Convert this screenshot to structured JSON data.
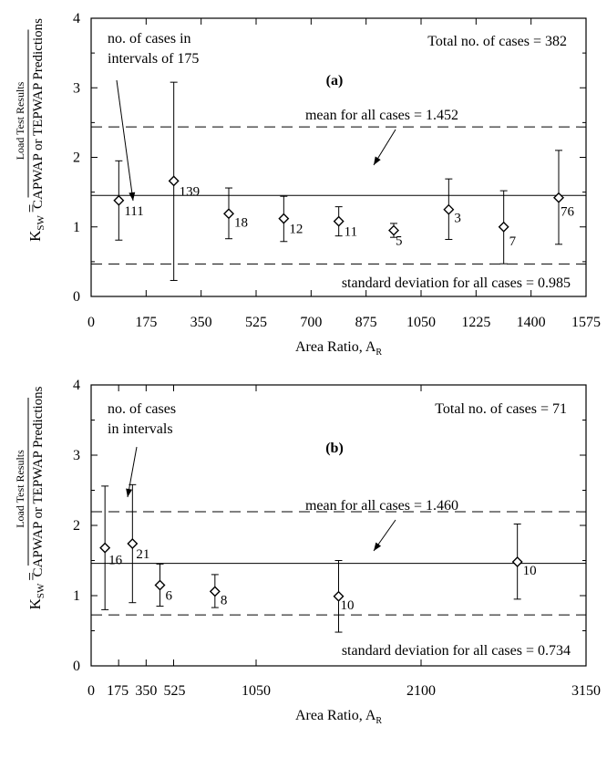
{
  "chart_data": [
    {
      "type": "scatter",
      "panel_label": "(a)",
      "xlabel": "Area Ratio, A",
      "xlabel_sub": "R",
      "ylabel_prefix": "K",
      "ylabel_sub": "SW",
      "ylabel_numerator": "Load Test Results",
      "ylabel_denominator": "CAPWAP or TEPWAP Predictions",
      "xlim": [
        0,
        1575
      ],
      "ylim": [
        0,
        4
      ],
      "xticks": [
        0,
        175,
        350,
        525,
        700,
        875,
        1050,
        1225,
        1400,
        1575
      ],
      "yticks": [
        0,
        1,
        2,
        3,
        4
      ],
      "total_text": "Total no. of cases = 382",
      "callout_text": [
        "no. of cases in",
        "intervals of 175"
      ],
      "mean": {
        "value": 1.452,
        "label": "mean for all cases = 1.452"
      },
      "std_lines": {
        "lower": 0.467,
        "upper": 2.437,
        "label": "standard deviation for all cases = 0.985"
      },
      "points": [
        {
          "x": 88,
          "y": 1.38,
          "low": 0.81,
          "high": 1.95,
          "count": "111"
        },
        {
          "x": 263,
          "y": 1.66,
          "low": 0.23,
          "high": 3.08,
          "count": "139"
        },
        {
          "x": 438,
          "y": 1.19,
          "low": 0.83,
          "high": 1.56,
          "count": "18"
        },
        {
          "x": 613,
          "y": 1.12,
          "low": 0.79,
          "high": 1.44,
          "count": "12"
        },
        {
          "x": 788,
          "y": 1.08,
          "low": 0.87,
          "high": 1.29,
          "count": "11"
        },
        {
          "x": 963,
          "y": 0.95,
          "low": 0.85,
          "high": 1.05,
          "count": "5"
        },
        {
          "x": 1138,
          "y": 1.25,
          "low": 0.82,
          "high": 1.69,
          "count": "3"
        },
        {
          "x": 1313,
          "y": 1.0,
          "low": 0.47,
          "high": 1.52,
          "count": "7"
        },
        {
          "x": 1488,
          "y": 1.42,
          "low": 0.75,
          "high": 2.1,
          "count": "76"
        }
      ]
    },
    {
      "type": "scatter",
      "panel_label": "(b)",
      "xlabel": "Area Ratio, A",
      "xlabel_sub": "R",
      "ylabel_prefix": "K",
      "ylabel_sub": "SW",
      "ylabel_numerator": "Load Test Results",
      "ylabel_denominator": "CAPWAP or TEPWAP Predictions",
      "xlim": [
        0,
        3150
      ],
      "ylim": [
        0,
        4
      ],
      "xticks": [
        0,
        175,
        350,
        525,
        1050,
        2100,
        3150
      ],
      "xtick_labels": [
        "0",
        "175",
        "350",
        "525",
        "1050",
        "2100",
        "3150"
      ],
      "yticks": [
        0,
        1,
        2,
        3,
        4
      ],
      "total_text": "Total no. of cases = 71",
      "callout_text": [
        "no. of cases",
        "in intervals"
      ],
      "mean": {
        "value": 1.46,
        "label": "mean for all cases = 1.460"
      },
      "std_lines": {
        "lower": 0.726,
        "upper": 2.194,
        "label": "standard deviation for all cases = 0.734"
      },
      "points": [
        {
          "x": 88,
          "y": 1.68,
          "low": 0.8,
          "high": 2.56,
          "count": "16"
        },
        {
          "x": 263,
          "y": 1.74,
          "low": 0.9,
          "high": 2.58,
          "count": "21"
        },
        {
          "x": 438,
          "y": 1.15,
          "low": 0.85,
          "high": 1.45,
          "count": "6"
        },
        {
          "x": 788,
          "y": 1.06,
          "low": 0.83,
          "high": 1.3,
          "count": "8"
        },
        {
          "x": 1575,
          "y": 0.99,
          "low": 0.48,
          "high": 1.5,
          "count": "10"
        },
        {
          "x": 2713,
          "y": 1.48,
          "low": 0.95,
          "high": 2.02,
          "count": "10"
        }
      ]
    }
  ]
}
